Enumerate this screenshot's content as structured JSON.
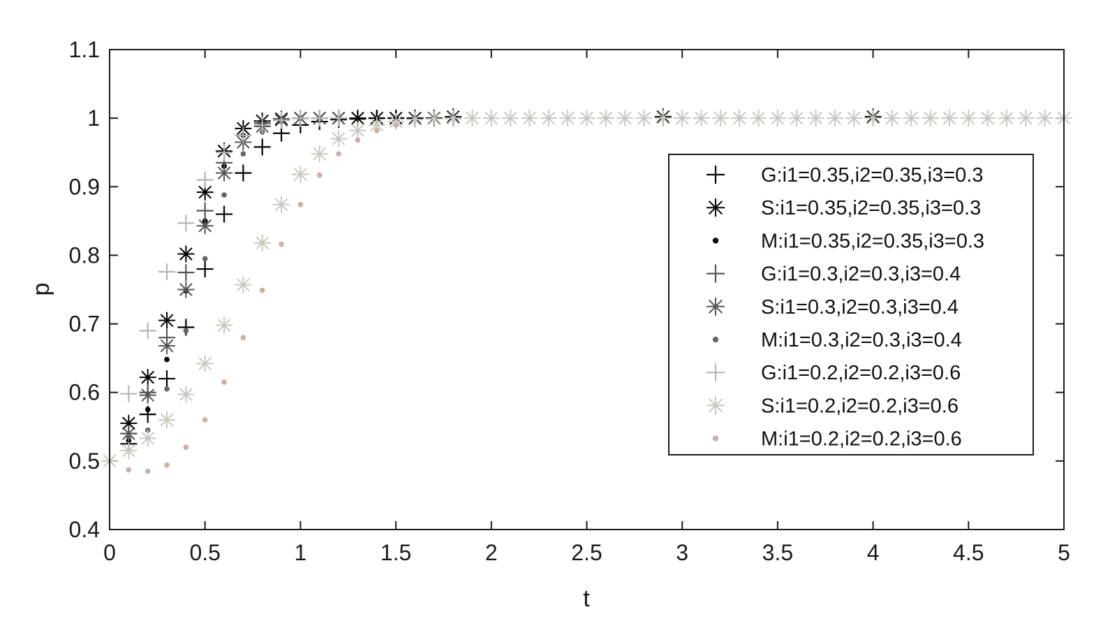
{
  "chart_data": {
    "type": "scatter",
    "title": "",
    "xlabel": "t",
    "ylabel": "p",
    "xlim": [
      0,
      5
    ],
    "ylim": [
      0.4,
      1.1
    ],
    "xticks": [
      "0",
      "0.5",
      "1",
      "1.5",
      "2",
      "2.5",
      "3",
      "3.5",
      "4",
      "4.5",
      "5"
    ],
    "yticks": [
      "0.4",
      "0.5",
      "0.6",
      "0.7",
      "0.8",
      "0.9",
      "1",
      "1.1"
    ],
    "grid": false,
    "legend_position": "right",
    "series": [
      {
        "name": "G:i1=0.35,i2=0.35,i3=0.3",
        "marker": "plus",
        "color": "#000000",
        "x": [
          0.1,
          0.2,
          0.3,
          0.4,
          0.5,
          0.6,
          0.7,
          0.8,
          0.9,
          1.0,
          1.1,
          1.2,
          1.3,
          1.4,
          1.5,
          1.6,
          1.7,
          1.8
        ],
        "y": [
          0.525,
          0.568,
          0.62,
          0.695,
          0.78,
          0.86,
          0.92,
          0.958,
          0.978,
          0.99,
          0.995,
          0.998,
          0.999,
          1.0,
          1.0,
          1.0,
          1.0,
          1.0
        ]
      },
      {
        "name": "S:i1=0.35,i2=0.35,i3=0.3",
        "marker": "asterisk",
        "color": "#000000",
        "x": [
          0.1,
          0.2,
          0.3,
          0.4,
          0.5,
          0.6,
          0.7,
          0.8,
          0.9,
          1.0,
          1.1,
          1.2,
          1.3,
          1.4,
          1.5,
          1.6,
          1.7,
          1.8,
          2.9,
          4.0
        ],
        "y": [
          0.555,
          0.622,
          0.705,
          0.802,
          0.892,
          0.952,
          0.985,
          0.996,
          0.999,
          1.0,
          1.0,
          1.0,
          1.0,
          1.0,
          1.0,
          1.0,
          1.0,
          1.002,
          1.002,
          1.002
        ]
      },
      {
        "name": "M:i1=0.35,i2=0.35,i3=0.3",
        "marker": "dot",
        "color": "#000000",
        "x": [
          0.1,
          0.2,
          0.3,
          0.4,
          0.5,
          0.6,
          0.7,
          0.8,
          0.9,
          1.0
        ],
        "y": [
          0.53,
          0.575,
          0.648,
          0.748,
          0.85,
          0.93,
          0.975,
          0.994,
          0.999,
          1.0
        ]
      },
      {
        "name": "G:i1=0.3,i2=0.3,i3=0.4",
        "marker": "plus",
        "color": "#555555",
        "x": [
          0.1,
          0.2,
          0.3,
          0.4,
          0.5,
          0.6,
          0.7,
          0.8,
          0.9,
          1.0,
          1.1,
          1.2
        ],
        "y": [
          0.54,
          0.6,
          0.68,
          0.775,
          0.865,
          0.935,
          0.975,
          0.993,
          0.999,
          1.0,
          1.0,
          1.0
        ]
      },
      {
        "name": "S:i1=0.3,i2=0.3,i3=0.4",
        "marker": "asterisk",
        "color": "#555555",
        "x": [
          0.1,
          0.2,
          0.3,
          0.4,
          0.5,
          0.6,
          0.7,
          0.8,
          0.9,
          1.0,
          1.1,
          1.2
        ],
        "y": [
          0.54,
          0.596,
          0.668,
          0.75,
          0.843,
          0.92,
          0.965,
          0.988,
          0.997,
          1.0,
          1.0,
          1.0
        ]
      },
      {
        "name": "M:i1=0.3,i2=0.3,i3=0.4",
        "marker": "dot",
        "color": "#666666",
        "x": [
          0.1,
          0.2,
          0.3,
          0.4,
          0.5,
          0.6,
          0.7,
          0.8,
          0.9
        ],
        "y": [
          0.535,
          0.545,
          0.605,
          0.69,
          0.795,
          0.888,
          0.948,
          0.98,
          0.995
        ]
      },
      {
        "name": "G:i1=0.2,i2=0.2,i3=0.6",
        "marker": "plus",
        "color": "#b5b5b5",
        "x": [
          0.1,
          0.2,
          0.3,
          0.4,
          0.5,
          0.6,
          0.7,
          0.8,
          0.9,
          1.0,
          1.1,
          1.2
        ],
        "y": [
          0.598,
          0.69,
          0.776,
          0.847,
          0.91,
          0.95,
          0.975,
          0.99,
          0.997,
          1.0,
          1.0,
          1.0
        ]
      },
      {
        "name": "S:i1=0.2,i2=0.2,i3=0.6",
        "marker": "asterisk",
        "color": "#c8c8c0",
        "x": [
          0.0,
          0.1,
          0.2,
          0.3,
          0.4,
          0.5,
          0.6,
          0.7,
          0.8,
          0.9,
          1.0,
          1.1,
          1.2,
          1.3,
          1.4,
          1.5,
          1.6,
          1.7,
          1.8,
          1.9,
          2.0,
          2.1,
          2.2,
          2.3,
          2.4,
          2.5,
          2.6,
          2.7,
          2.8,
          2.9,
          3.0,
          3.1,
          3.2,
          3.3,
          3.4,
          3.5,
          3.6,
          3.7,
          3.8,
          3.9,
          4.0,
          4.1,
          4.2,
          4.3,
          4.4,
          4.5,
          4.6,
          4.7,
          4.8,
          4.9,
          5.0
        ],
        "y": [
          0.5,
          0.515,
          0.533,
          0.56,
          0.597,
          0.642,
          0.698,
          0.757,
          0.818,
          0.874,
          0.918,
          0.948,
          0.97,
          0.982,
          0.99,
          0.995,
          0.998,
          0.999,
          1.0,
          1.0,
          1.0,
          1.0,
          1.0,
          1.0,
          1.0,
          1.0,
          1.0,
          1.0,
          1.0,
          1.0,
          1.0,
          1.0,
          1.0,
          1.0,
          1.0,
          1.0,
          1.0,
          1.0,
          1.0,
          1.0,
          1.0,
          1.0,
          1.0,
          1.0,
          1.0,
          1.0,
          1.0,
          1.0,
          1.0,
          1.0,
          1.0
        ]
      },
      {
        "name": "M:i1=0.2,i2=0.2,i3=0.6",
        "marker": "dot",
        "color": "#c9b0a8",
        "x": [
          0.1,
          0.2,
          0.3,
          0.4,
          0.5,
          0.6,
          0.7,
          0.8,
          0.9,
          1.0,
          1.1,
          1.2,
          1.3,
          1.4,
          1.5
        ],
        "y": [
          0.487,
          0.485,
          0.494,
          0.52,
          0.56,
          0.615,
          0.68,
          0.749,
          0.816,
          0.874,
          0.917,
          0.948,
          0.968,
          0.982,
          0.99
        ]
      }
    ]
  }
}
